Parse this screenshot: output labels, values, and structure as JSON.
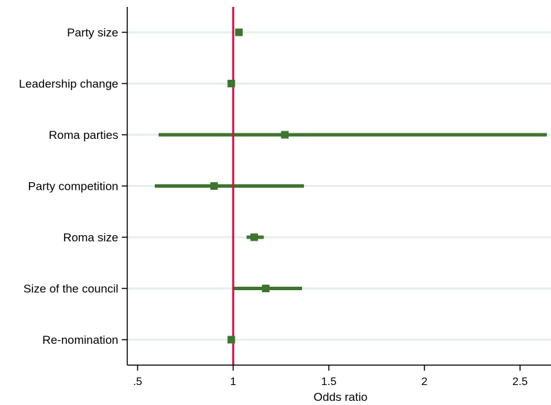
{
  "chart_data": {
    "type": "scatter",
    "subtype": "coefficient-plot-with-ci",
    "title": "",
    "xlabel": "Odds ratio",
    "ylabel": "",
    "xlim": [
      0.45,
      2.65
    ],
    "x_ticks": [
      0.5,
      1,
      1.5,
      2,
      2.5
    ],
    "x_tick_labels": [
      ".5",
      "1",
      "1.5",
      "2",
      "2.5"
    ],
    "reference_line": 1,
    "grid": "horizontal",
    "categories": [
      "Party size",
      "Leadership change",
      "Roma parties",
      "Party competition",
      "Roma size",
      "Size of the council",
      "Re-nomination"
    ],
    "estimates": [
      1.03,
      0.99,
      1.27,
      0.9,
      1.11,
      1.17,
      0.99
    ],
    "ci_lower": [
      1.02,
      0.98,
      0.61,
      0.59,
      1.07,
      1.0,
      0.98
    ],
    "ci_upper": [
      1.04,
      1.0,
      2.64,
      1.37,
      1.16,
      1.36,
      1.0
    ],
    "colors": {
      "marker": "#3f7430",
      "ci": "#3f7430",
      "reference": "#c4164a",
      "grid": "#e6efec",
      "axis": "#000000"
    }
  }
}
